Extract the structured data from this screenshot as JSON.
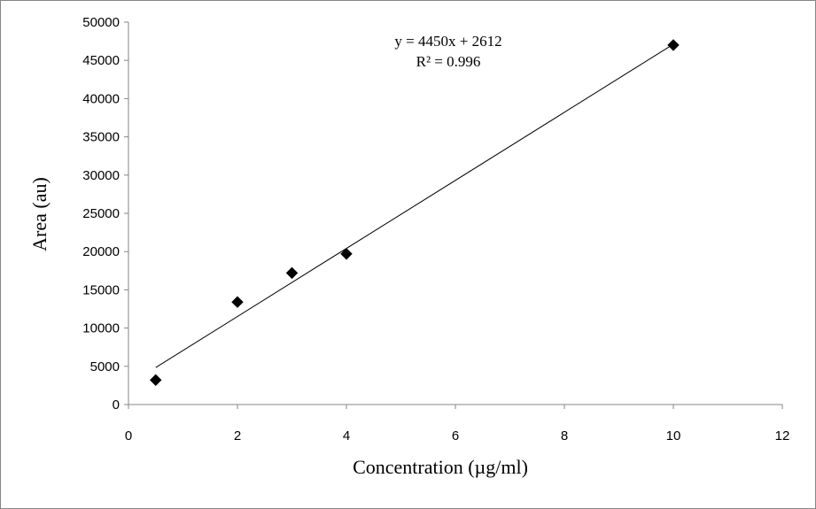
{
  "chart_data": {
    "type": "scatter",
    "xlabel": "Concentration (µg/ml)",
    "ylabel": "Area (au)",
    "xlim": [
      0,
      12
    ],
    "ylim": [
      0,
      50000
    ],
    "x_ticks": [
      0,
      2,
      4,
      6,
      8,
      10,
      12
    ],
    "y_ticks": [
      0,
      5000,
      10000,
      15000,
      20000,
      25000,
      30000,
      35000,
      40000,
      45000,
      50000
    ],
    "grid": false,
    "legend": "none",
    "marker": "diamond",
    "marker_color": "#000000",
    "series": [
      {
        "x": [
          0.5,
          2,
          3,
          4,
          10
        ],
        "y": [
          3200,
          13400,
          17200,
          19700,
          47000
        ]
      }
    ],
    "trendline": {
      "type": "linear",
      "slope": 4450,
      "intercept": 2612,
      "x_range": [
        0.5,
        10
      ],
      "equation_label": "y = 4450x + 2612",
      "r2_label": "R² = 0.996"
    }
  }
}
